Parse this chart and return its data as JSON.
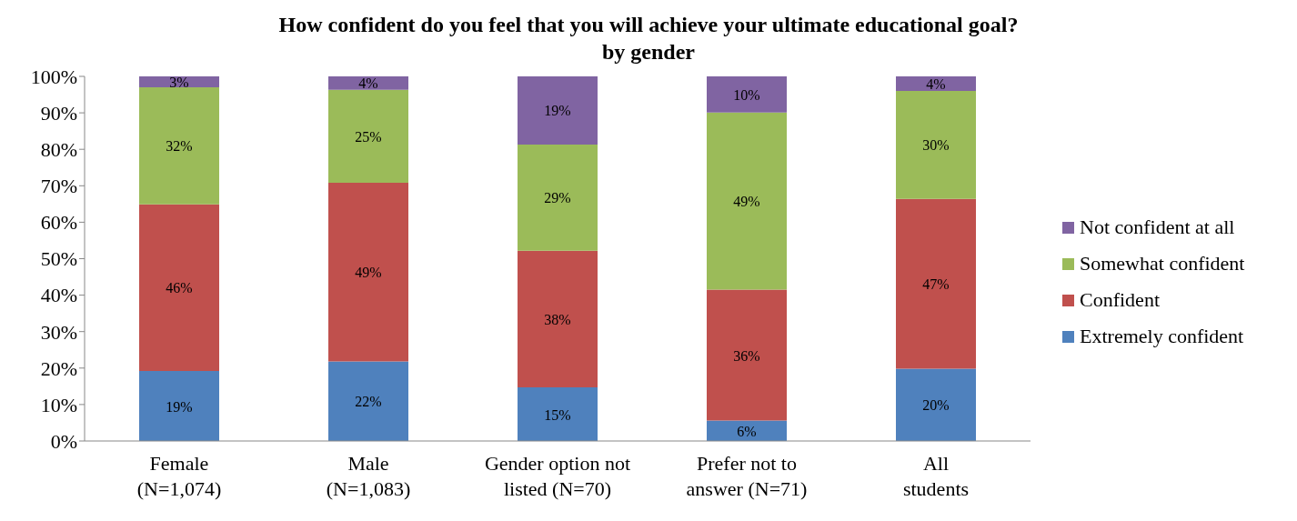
{
  "chart_data": {
    "type": "bar",
    "stacked": true,
    "title": "How confident do you feel that you will achieve your ultimate educational goal?",
    "subtitle": "by gender",
    "categories": [
      "Female\n(N=1,074)",
      "Male\n(N=1,083)",
      "Gender option not\nlisted (N=70)",
      "Prefer not to\nanswer (N=71)",
      "All\nstudents"
    ],
    "series": [
      {
        "name": "Extremely confident",
        "color": "#4f81bd",
        "values": [
          19.2,
          21.8,
          14.7,
          5.6,
          19.8
        ],
        "value_labels": [
          "19%",
          "22%",
          "15%",
          "6%",
          "20%"
        ]
      },
      {
        "name": "Confident",
        "color": "#c0504d",
        "values": [
          45.7,
          49.0,
          37.5,
          35.9,
          46.6
        ],
        "value_labels": [
          "46%",
          "49%",
          "38%",
          "36%",
          "47%"
        ]
      },
      {
        "name": "Somewhat confident",
        "color": "#9bbb59",
        "values": [
          32.1,
          25.5,
          29.1,
          48.6,
          29.6
        ],
        "value_labels": [
          "32%",
          "25%",
          "29%",
          "49%",
          "30%"
        ]
      },
      {
        "name": "Not confident at all",
        "color": "#8064a2",
        "values": [
          3.0,
          3.7,
          18.7,
          9.9,
          4.0
        ],
        "value_labels": [
          "3%",
          "4%",
          "19%",
          "10%",
          "4%"
        ]
      }
    ],
    "ylim": [
      0,
      100
    ],
    "yticks": [
      {
        "value": 0,
        "label": "0%"
      },
      {
        "value": 10,
        "label": "10%"
      },
      {
        "value": 20,
        "label": "20%"
      },
      {
        "value": 30,
        "label": "30%"
      },
      {
        "value": 40,
        "label": "40%"
      },
      {
        "value": 50,
        "label": "50%"
      },
      {
        "value": 60,
        "label": "60%"
      },
      {
        "value": 70,
        "label": "70%"
      },
      {
        "value": 80,
        "label": "80%"
      },
      {
        "value": 90,
        "label": "90%"
      },
      {
        "value": 100,
        "label": "100%"
      }
    ],
    "grid": false,
    "legend": "right"
  }
}
